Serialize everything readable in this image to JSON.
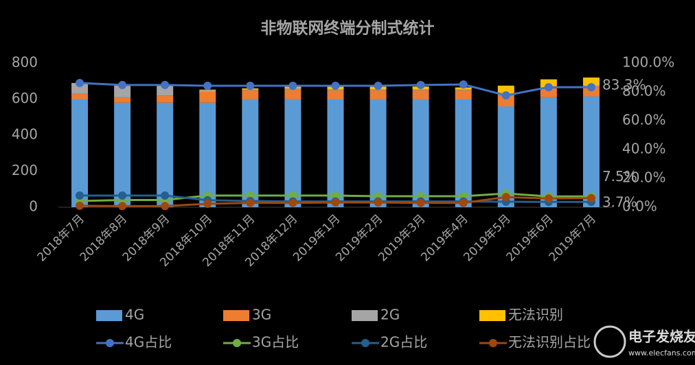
{
  "chart_data": {
    "type": "bar",
    "stacked": true,
    "title": "非物联网终端分制式统计",
    "categories": [
      "2018年7月",
      "2018年8月",
      "2018年9月",
      "2018年10月",
      "2018年11月",
      "2018年12月",
      "2019年1月",
      "2019年2月",
      "2019年3月",
      "2019年4月",
      "2019年5月",
      "2019年6月",
      "2019年7月"
    ],
    "ylim": [
      0,
      800
    ],
    "yticks": [
      0,
      200,
      400,
      600,
      800
    ],
    "y2lim": [
      0,
      100
    ],
    "y2ticks": [
      {
        "value": 0,
        "label": "0.0%"
      },
      {
        "value": 20,
        "label": "20.0%"
      },
      {
        "value": 40,
        "label": "40.0%"
      },
      {
        "value": 60,
        "label": "60.0%"
      },
      {
        "value": 80,
        "label": "80.0%"
      },
      {
        "value": 100,
        "label": "100.0%"
      }
    ],
    "series": [
      {
        "name": "4G",
        "type": "bar",
        "color": "#5b9bd5",
        "values": [
          600,
          580,
          580,
          580,
          600,
          600,
          600,
          600,
          600,
          600,
          560,
          610,
          615
        ]
      },
      {
        "name": "3G",
        "type": "bar",
        "color": "#ed7d31",
        "values": [
          30,
          30,
          40,
          60,
          50,
          55,
          50,
          50,
          50,
          50,
          60,
          50,
          55
        ]
      },
      {
        "name": "2G",
        "type": "bar",
        "color": "#a5a5a5",
        "values": [
          60,
          65,
          60,
          10,
          5,
          5,
          5,
          5,
          5,
          5,
          5,
          5,
          5
        ]
      },
      {
        "name": "无法识别",
        "type": "bar",
        "color": "#ffc000",
        "values": [
          0,
          0,
          0,
          3,
          5,
          10,
          15,
          15,
          15,
          10,
          50,
          45,
          45
        ]
      },
      {
        "name": "4G占比",
        "type": "line",
        "axis": "y2",
        "color": "#4472c4",
        "values": [
          86.2,
          84.8,
          84.8,
          84.3,
          84.3,
          84.3,
          84.3,
          84.3,
          84.8,
          85.2,
          77.6,
          83.3,
          83.3
        ],
        "value_labels": [
          null,
          null,
          null,
          null,
          null,
          null,
          null,
          null,
          null,
          null,
          null,
          null,
          "83.3%"
        ]
      },
      {
        "name": "3G占比",
        "type": "line",
        "axis": "y2",
        "color": "#70ad47",
        "values": [
          4.3,
          5.0,
          5.0,
          8.1,
          8.1,
          8.1,
          8.1,
          7.6,
          7.6,
          7.6,
          9.5,
          7.5,
          7.5
        ],
        "value_labels": [
          null,
          null,
          null,
          null,
          null,
          null,
          null,
          null,
          null,
          null,
          null,
          null,
          "7.5%"
        ]
      },
      {
        "name": "2G占比",
        "type": "line",
        "axis": "y2",
        "color": "#255e91",
        "values": [
          8.1,
          8.1,
          8.1,
          4.8,
          4.3,
          4.0,
          4.0,
          4.0,
          4.0,
          4.0,
          3.8,
          3.7,
          3.7
        ],
        "value_labels": [
          null,
          null,
          null,
          null,
          null,
          null,
          null,
          null,
          null,
          null,
          null,
          null,
          "3.7%"
        ]
      },
      {
        "name": "无法识别占比",
        "type": "line",
        "axis": "y2",
        "color": "#9e480e",
        "values": [
          1.0,
          0.8,
          0.8,
          2.4,
          3.0,
          3.0,
          3.3,
          3.3,
          3.0,
          3.0,
          7.0,
          6.1,
          6.3
        ]
      }
    ],
    "watermark": {
      "title": "电子发烧友",
      "url": "www.elecfans.com"
    }
  }
}
